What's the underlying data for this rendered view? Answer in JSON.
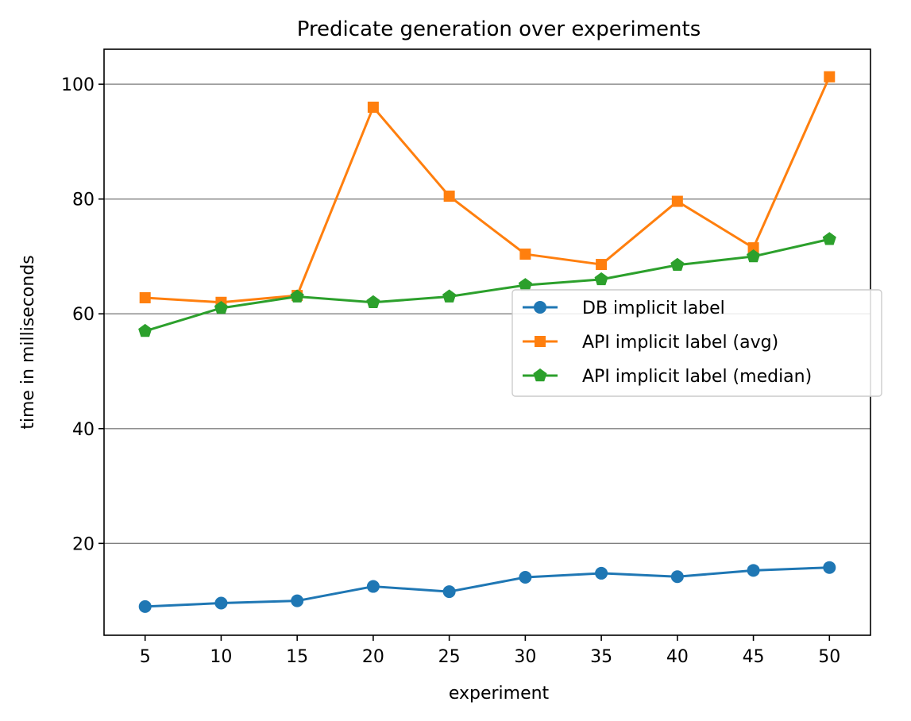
{
  "chart_data": {
    "type": "line",
    "title": "Predicate generation over experiments",
    "xlabel": "experiment",
    "ylabel": "time in milliseconds",
    "x": [
      5,
      10,
      15,
      20,
      25,
      30,
      35,
      40,
      45,
      50
    ],
    "xlim": [
      2.3,
      52.7
    ],
    "ylim": [
      4,
      106.1
    ],
    "xticks": [
      "5",
      "10",
      "15",
      "20",
      "25",
      "30",
      "35",
      "40",
      "45",
      "50"
    ],
    "yticks": [
      "20",
      "40",
      "60",
      "80",
      "100"
    ],
    "grid": "horizontal",
    "legend_position": "center-right",
    "series": [
      {
        "name": "DB implicit label",
        "color": "#1f77b4",
        "marker": "circle",
        "values": [
          9.0,
          9.6,
          10.0,
          12.5,
          11.6,
          14.1,
          14.8,
          14.2,
          15.3,
          15.8
        ]
      },
      {
        "name": "API implicit label (avg)",
        "color": "#ff7f0e",
        "marker": "square",
        "values": [
          62.8,
          62.0,
          63.2,
          96.0,
          80.5,
          70.4,
          68.6,
          79.6,
          71.5,
          101.3
        ]
      },
      {
        "name": "API implicit label (median)",
        "color": "#2ca02c",
        "marker": "pentagon",
        "values": [
          57.0,
          61.0,
          63.0,
          62.0,
          63.0,
          65.0,
          66.0,
          68.5,
          70.0,
          73.0
        ]
      }
    ]
  }
}
